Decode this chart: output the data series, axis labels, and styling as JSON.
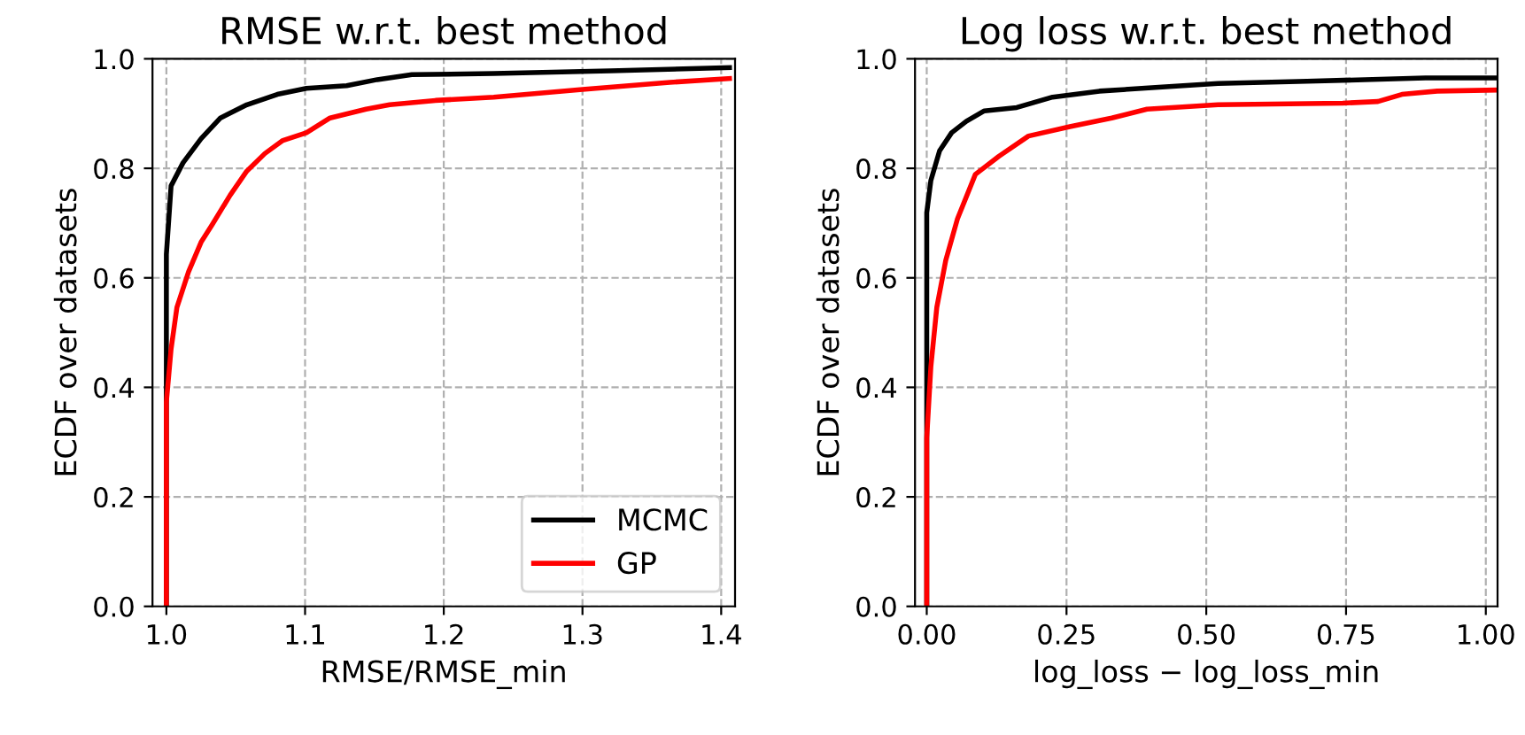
{
  "chart_data": [
    {
      "type": "line",
      "title": "RMSE w.r.t. best method",
      "xlabel": "RMSE/RMSE_min",
      "ylabel": "ECDF over datasets",
      "grid": true,
      "legend": "lower right",
      "xlim": [
        0.99,
        1.41
      ],
      "xticks": [
        {
          "value": 1.0,
          "label": "1.0"
        },
        {
          "value": 1.1,
          "label": "1.1"
        },
        {
          "value": 1.2,
          "label": "1.2"
        },
        {
          "value": 1.3,
          "label": "1.3"
        },
        {
          "value": 1.4,
          "label": "1.4"
        }
      ],
      "ylim": [
        0,
        1
      ],
      "yticks": [
        {
          "value": 0,
          "label": "0.0"
        },
        {
          "value": 0.2,
          "label": "0.2"
        },
        {
          "value": 0.4,
          "label": "0.4"
        },
        {
          "value": 0.6,
          "label": "0.6"
        },
        {
          "value": 0.8,
          "label": "0.8"
        },
        {
          "value": 1,
          "label": "1.0"
        }
      ],
      "series": [
        {
          "name": "MCMC",
          "color": "#000000",
          "x": [
            1.0,
            1.0,
            1.0034,
            1.012,
            1.025,
            1.039,
            1.058,
            1.08,
            1.101,
            1.13,
            1.152,
            1.177,
            1.236,
            1.32,
            1.406
          ],
          "values": [
            0,
            0.643,
            0.768,
            0.81,
            0.854,
            0.892,
            0.916,
            0.935,
            0.946,
            0.951,
            0.962,
            0.971,
            0.973,
            0.978,
            0.984
          ]
        },
        {
          "name": "GP",
          "color": "#ff0000",
          "x": [
            1.0,
            1.0,
            1.0034,
            1.0076,
            1.016,
            1.025,
            1.033,
            1.046,
            1.058,
            1.071,
            1.084,
            1.101,
            1.118,
            1.144,
            1.161,
            1.194,
            1.236,
            1.3,
            1.363,
            1.406
          ],
          "values": [
            0,
            0.373,
            0.47,
            0.546,
            0.611,
            0.665,
            0.697,
            0.751,
            0.795,
            0.827,
            0.851,
            0.865,
            0.892,
            0.908,
            0.916,
            0.924,
            0.93,
            0.944,
            0.957,
            0.964
          ]
        }
      ]
    },
    {
      "type": "line",
      "title": "Log loss w.r.t. best method",
      "xlabel": "log_loss − log_loss_min",
      "ylabel": "ECDF over datasets",
      "grid": true,
      "xlim": [
        -0.021,
        1.021
      ],
      "xticks": [
        {
          "value": 0,
          "label": "0.00"
        },
        {
          "value": 0.25,
          "label": "0.25"
        },
        {
          "value": 0.5,
          "label": "0.50"
        },
        {
          "value": 0.75,
          "label": "0.75"
        },
        {
          "value": 1.0,
          "label": "1.00"
        }
      ],
      "ylim": [
        0,
        1
      ],
      "yticks": [
        {
          "value": 0,
          "label": "0.0"
        },
        {
          "value": 0.2,
          "label": "0.2"
        },
        {
          "value": 0.4,
          "label": "0.4"
        },
        {
          "value": 0.6,
          "label": "0.6"
        },
        {
          "value": 0.8,
          "label": "0.8"
        },
        {
          "value": 1,
          "label": "1.0"
        }
      ],
      "series": [
        {
          "color": "#000000",
          "x": [
            0,
            0,
            0.0074,
            0.023,
            0.0445,
            0.071,
            0.103,
            0.161,
            0.225,
            0.309,
            0.415,
            0.521,
            0.68,
            0.892,
            1.02
          ],
          "values": [
            0,
            0.719,
            0.778,
            0.832,
            0.865,
            0.886,
            0.905,
            0.911,
            0.93,
            0.941,
            0.948,
            0.955,
            0.959,
            0.965,
            0.965
          ]
        },
        {
          "color": "#ff0000",
          "x": [
            0,
            0,
            0.0074,
            0.018,
            0.034,
            0.055,
            0.087,
            0.129,
            0.182,
            0.256,
            0.331,
            0.394,
            0.521,
            0.744,
            0.807,
            0.85,
            0.913,
            1.02
          ],
          "values": [
            0,
            0.308,
            0.438,
            0.546,
            0.632,
            0.708,
            0.789,
            0.822,
            0.859,
            0.876,
            0.892,
            0.908,
            0.916,
            0.919,
            0.922,
            0.935,
            0.941,
            0.943
          ]
        }
      ]
    }
  ]
}
